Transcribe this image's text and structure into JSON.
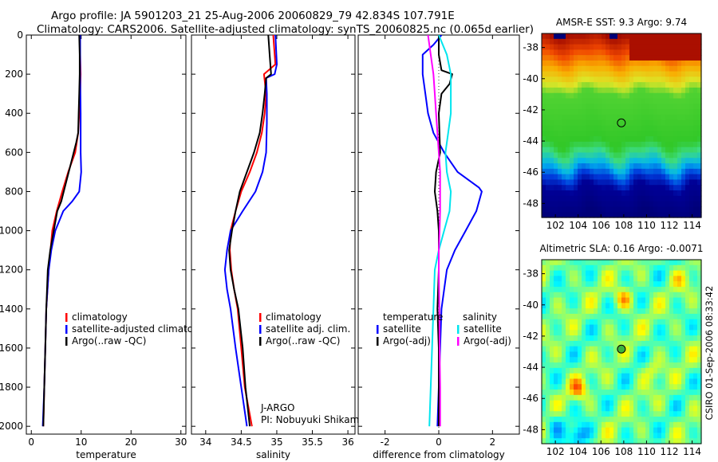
{
  "header": {
    "line1": "Argo profile: JA 5901203_21 25-Aug-2006 20060829_79 42.834S 107.791E",
    "line2": "Climatology: CARS2006. Satellite-adjusted climatology: synTS_20060825.nc (0.065d earlier)"
  },
  "side_label": "CSIRO 01-Sep-2006 08:33:42",
  "colors": {
    "climatology": "#ff0000",
    "satellite": "#0000ff",
    "argo": "#000000",
    "salinity_satellite": "#00e5ee",
    "salinity_argo": "#ff00ff"
  },
  "chart_data": [
    {
      "type": "line",
      "xlabel": "temperature",
      "xlim": [
        -1,
        31
      ],
      "xticks": [
        "0",
        "10",
        "20",
        "30"
      ],
      "ylim": [
        0,
        2040
      ],
      "yticks": [
        "0",
        "200",
        "400",
        "600",
        "800",
        "1000",
        "1200",
        "1400",
        "1600",
        "1800",
        "2000"
      ],
      "legend": [
        "climatology",
        "satellite-adjusted climatology",
        "Argo(..raw -QC)"
      ],
      "series": [
        {
          "name": "climatology",
          "color": "#ff0000",
          "points": [
            [
              9.7,
              0
            ],
            [
              9.8,
              100
            ],
            [
              9.9,
              200
            ],
            [
              9.8,
              300
            ],
            [
              9.6,
              400
            ],
            [
              9.4,
              500
            ],
            [
              8.8,
              600
            ],
            [
              7.4,
              700
            ],
            [
              6.2,
              800
            ],
            [
              5.1,
              900
            ],
            [
              4.2,
              1000
            ],
            [
              3.5,
              1200
            ],
            [
              3.0,
              1400
            ],
            [
              2.8,
              1600
            ],
            [
              2.6,
              1800
            ],
            [
              2.4,
              2000
            ]
          ]
        },
        {
          "name": "satellite-adjusted climatology",
          "color": "#0000ff",
          "points": [
            [
              9.8,
              0
            ],
            [
              9.8,
              200
            ],
            [
              9.9,
              400
            ],
            [
              9.9,
              600
            ],
            [
              10.0,
              700
            ],
            [
              9.6,
              800
            ],
            [
              8.2,
              850
            ],
            [
              6.4,
              900
            ],
            [
              4.8,
              1000
            ],
            [
              4.0,
              1100
            ],
            [
              3.5,
              1200
            ],
            [
              3.0,
              1400
            ],
            [
              2.8,
              1600
            ],
            [
              2.6,
              1800
            ],
            [
              2.3,
              2000
            ]
          ]
        },
        {
          "name": "Argo(..raw -QC)",
          "color": "#000000",
          "points": [
            [
              9.6,
              0
            ],
            [
              9.7,
              100
            ],
            [
              9.7,
              200
            ],
            [
              9.6,
              300
            ],
            [
              9.5,
              400
            ],
            [
              9.4,
              500
            ],
            [
              9.0,
              550
            ],
            [
              8.0,
              650
            ],
            [
              7.0,
              750
            ],
            [
              6.0,
              850
            ],
            [
              5.2,
              900
            ],
            [
              4.5,
              1000
            ],
            [
              3.8,
              1100
            ],
            [
              3.3,
              1200
            ],
            [
              3.0,
              1400
            ],
            [
              2.8,
              1600
            ],
            [
              2.6,
              1800
            ],
            [
              2.4,
              2000
            ]
          ]
        }
      ]
    },
    {
      "type": "line",
      "xlabel": "salinity",
      "xlim": [
        33.8,
        36.1
      ],
      "xticks": [
        "34",
        "34.5",
        "35",
        "35.5",
        "36"
      ],
      "ylim": [
        0,
        2040
      ],
      "legend": [
        "climatology",
        "satellite adj. clim.",
        "Argo(..raw -QC)"
      ],
      "annotation": [
        "J-ARGO",
        "PI: Nobuyuki Shikama"
      ],
      "series": [
        {
          "name": "climatology",
          "color": "#ff0000",
          "points": [
            [
              34.95,
              0
            ],
            [
              34.96,
              50
            ],
            [
              34.98,
              150
            ],
            [
              34.82,
              200
            ],
            [
              34.85,
              300
            ],
            [
              34.83,
              400
            ],
            [
              34.79,
              500
            ],
            [
              34.72,
              600
            ],
            [
              34.62,
              700
            ],
            [
              34.5,
              800
            ],
            [
              34.42,
              900
            ],
            [
              34.35,
              1000
            ],
            [
              34.34,
              1100
            ],
            [
              34.36,
              1200
            ],
            [
              34.4,
              1300
            ],
            [
              34.45,
              1400
            ],
            [
              34.5,
              1600
            ],
            [
              34.55,
              1800
            ],
            [
              34.65,
              2000
            ]
          ]
        },
        {
          "name": "satellite adj. clim.",
          "color": "#0000ff",
          "points": [
            [
              34.98,
              0
            ],
            [
              35.0,
              150
            ],
            [
              34.97,
              200
            ],
            [
              34.85,
              220
            ],
            [
              34.86,
              300
            ],
            [
              34.86,
              450
            ],
            [
              34.85,
              600
            ],
            [
              34.8,
              700
            ],
            [
              34.7,
              800
            ],
            [
              34.52,
              900
            ],
            [
              34.35,
              1000
            ],
            [
              34.3,
              1100
            ],
            [
              34.27,
              1200
            ],
            [
              34.3,
              1300
            ],
            [
              34.35,
              1400
            ],
            [
              34.42,
              1600
            ],
            [
              34.5,
              1800
            ],
            [
              34.58,
              2000
            ]
          ]
        },
        {
          "name": "Argo(..raw -QC)",
          "color": "#000000",
          "points": [
            [
              34.88,
              0
            ],
            [
              34.9,
              100
            ],
            [
              34.92,
              200
            ],
            [
              34.85,
              220
            ],
            [
              34.83,
              300
            ],
            [
              34.8,
              400
            ],
            [
              34.76,
              500
            ],
            [
              34.68,
              600
            ],
            [
              34.58,
              700
            ],
            [
              34.48,
              800
            ],
            [
              34.42,
              900
            ],
            [
              34.37,
              1000
            ],
            [
              34.33,
              1100
            ],
            [
              34.35,
              1200
            ],
            [
              34.4,
              1300
            ],
            [
              34.46,
              1400
            ],
            [
              34.52,
              1600
            ],
            [
              34.56,
              1800
            ],
            [
              34.62,
              2000
            ]
          ]
        }
      ]
    },
    {
      "type": "line",
      "xlabel": "difference from climatology",
      "xlim": [
        -3,
        3
      ],
      "xticks": [
        "-2",
        "0",
        "2"
      ],
      "ylim": [
        0,
        2040
      ],
      "legend_left_title": "temperature",
      "legend_right_title": "salinity",
      "legend": [
        "satellite",
        "Argo(-adj)",
        "satellite",
        "Argo(-adj)"
      ],
      "series": [
        {
          "name": "temperature satellite",
          "color": "#0000ff",
          "points": [
            [
              0.1,
              0
            ],
            [
              -0.2,
              50
            ],
            [
              -0.6,
              100
            ],
            [
              -0.6,
              200
            ],
            [
              -0.5,
              300
            ],
            [
              -0.4,
              400
            ],
            [
              -0.2,
              500
            ],
            [
              0.2,
              600
            ],
            [
              0.7,
              700
            ],
            [
              1.5,
              780
            ],
            [
              1.6,
              800
            ],
            [
              1.4,
              900
            ],
            [
              1.0,
              1000
            ],
            [
              0.6,
              1100
            ],
            [
              0.3,
              1200
            ],
            [
              0.1,
              1400
            ],
            [
              0.05,
              1600
            ],
            [
              0.0,
              1800
            ],
            [
              -0.05,
              2000
            ]
          ]
        },
        {
          "name": "temperature Argo(-adj)",
          "color": "#000000",
          "points": [
            [
              0.0,
              0
            ],
            [
              0.0,
              100
            ],
            [
              0.1,
              180
            ],
            [
              0.5,
              200
            ],
            [
              0.4,
              250
            ],
            [
              0.1,
              300
            ],
            [
              0.0,
              400
            ],
            [
              0.05,
              600
            ],
            [
              -0.1,
              700
            ],
            [
              -0.15,
              800
            ],
            [
              -0.05,
              900
            ],
            [
              0.0,
              1000
            ],
            [
              0.0,
              1200
            ],
            [
              -0.05,
              1400
            ],
            [
              0.0,
              1600
            ],
            [
              0.0,
              1800
            ],
            [
              0.0,
              2000
            ]
          ]
        },
        {
          "name": "salinity satellite",
          "color": "#00e5ee",
          "points": [
            [
              0.0,
              0
            ],
            [
              0.3,
              100
            ],
            [
              0.45,
              200
            ],
            [
              0.45,
              400
            ],
            [
              0.35,
              500
            ],
            [
              0.25,
              600
            ],
            [
              0.3,
              700
            ],
            [
              0.45,
              800
            ],
            [
              0.4,
              900
            ],
            [
              0.2,
              1000
            ],
            [
              0.0,
              1100
            ],
            [
              -0.15,
              1200
            ],
            [
              -0.2,
              1400
            ],
            [
              -0.25,
              1600
            ],
            [
              -0.3,
              1800
            ],
            [
              -0.35,
              2000
            ]
          ]
        },
        {
          "name": "salinity Argo(-adj)",
          "color": "#ff00ff",
          "points": [
            [
              -0.4,
              0
            ],
            [
              -0.3,
              100
            ],
            [
              -0.2,
              200
            ],
            [
              -0.15,
              300
            ],
            [
              -0.1,
              400
            ],
            [
              -0.05,
              500
            ],
            [
              0.0,
              600
            ],
            [
              0.05,
              700
            ],
            [
              0.05,
              800
            ],
            [
              0.05,
              900
            ],
            [
              0.03,
              1000
            ],
            [
              0.0,
              1100
            ],
            [
              0.0,
              1200
            ],
            [
              0.02,
              1400
            ],
            [
              0.03,
              1600
            ],
            [
              0.05,
              1800
            ],
            [
              0.05,
              2000
            ]
          ]
        }
      ]
    },
    {
      "type": "heatmap",
      "title": "AMSR-E SST: 9.3 Argo: 9.74",
      "xlim": [
        100.8,
        114.8
      ],
      "ylim": [
        -48.9,
        -37.1
      ],
      "xticks": [
        "102",
        "104",
        "106",
        "108",
        "110",
        "112",
        "114"
      ],
      "yticks": [
        "-38",
        "-40",
        "-42",
        "-44",
        "-46",
        "-48"
      ],
      "marker": [
        107.791,
        -42.834
      ]
    },
    {
      "type": "heatmap",
      "title": "Altimetric SLA: 0.16 Argo: -0.0071",
      "xlim": [
        100.8,
        114.8
      ],
      "ylim": [
        -48.9,
        -37.1
      ],
      "xticks": [
        "102",
        "104",
        "106",
        "108",
        "110",
        "112",
        "114"
      ],
      "yticks": [
        "-38",
        "-40",
        "-42",
        "-44",
        "-46",
        "-48"
      ],
      "marker": [
        107.791,
        -42.834
      ]
    }
  ]
}
